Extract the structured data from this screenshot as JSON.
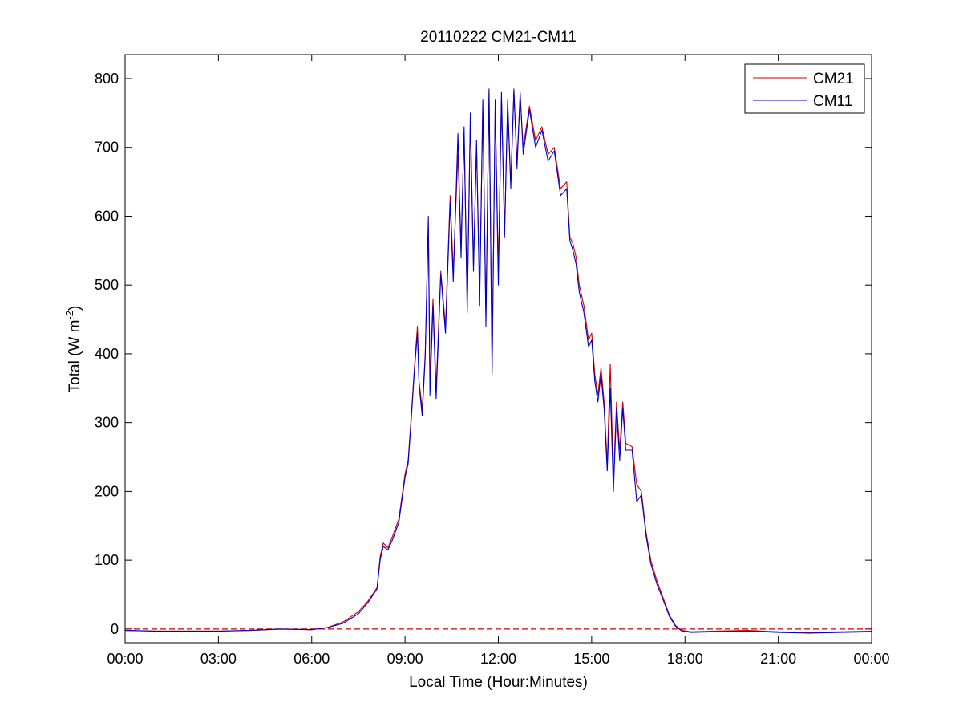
{
  "chart_data": {
    "type": "line",
    "title": "20110222 CM21-CM11",
    "xlabel": "Local Time (Hour:Minutes)",
    "ylabel": "Total (W m",
    "ylabel_exponent": "-2",
    "ylabel_close": ")",
    "xlim": [
      0,
      24
    ],
    "ylim": [
      -20,
      835
    ],
    "x_unit": "hours",
    "x_ticks": [
      {
        "value": 0,
        "label": "00:00"
      },
      {
        "value": 3,
        "label": "03:00"
      },
      {
        "value": 6,
        "label": "06:00"
      },
      {
        "value": 9,
        "label": "09:00"
      },
      {
        "value": 12,
        "label": "12:00"
      },
      {
        "value": 15,
        "label": "15:00"
      },
      {
        "value": 18,
        "label": "18:00"
      },
      {
        "value": 21,
        "label": "21:00"
      },
      {
        "value": 24,
        "label": "00:00"
      }
    ],
    "y_ticks": [
      {
        "value": 0,
        "label": "0"
      },
      {
        "value": 100,
        "label": "100"
      },
      {
        "value": 200,
        "label": "200"
      },
      {
        "value": 300,
        "label": "300"
      },
      {
        "value": 400,
        "label": "400"
      },
      {
        "value": 500,
        "label": "500"
      },
      {
        "value": 600,
        "label": "600"
      },
      {
        "value": 700,
        "label": "700"
      },
      {
        "value": 800,
        "label": "800"
      }
    ],
    "grid": false,
    "legend_position": "top-right",
    "reference_line": {
      "y": 0,
      "color": "#cc0000",
      "style": "dashed"
    },
    "series": [
      {
        "name": "CM21",
        "color": "#cc0000",
        "points": [
          [
            0.0,
            -2
          ],
          [
            1.0,
            -3
          ],
          [
            2.0,
            -3
          ],
          [
            3.0,
            -3
          ],
          [
            4.0,
            -2
          ],
          [
            5.0,
            0
          ],
          [
            6.0,
            -1
          ],
          [
            6.5,
            2
          ],
          [
            7.0,
            10
          ],
          [
            7.5,
            25
          ],
          [
            7.8,
            40
          ],
          [
            8.1,
            60
          ],
          [
            8.2,
            105
          ],
          [
            8.3,
            125
          ],
          [
            8.45,
            118
          ],
          [
            8.6,
            135
          ],
          [
            8.8,
            160
          ],
          [
            9.0,
            225
          ],
          [
            9.1,
            245
          ],
          [
            9.2,
            310
          ],
          [
            9.3,
            380
          ],
          [
            9.4,
            440
          ],
          [
            9.45,
            360
          ],
          [
            9.55,
            320
          ],
          [
            9.65,
            400
          ],
          [
            9.75,
            585
          ],
          [
            9.8,
            360
          ],
          [
            9.9,
            480
          ],
          [
            10.0,
            350
          ],
          [
            10.15,
            520
          ],
          [
            10.3,
            440
          ],
          [
            10.45,
            630
          ],
          [
            10.55,
            520
          ],
          [
            10.7,
            690
          ],
          [
            10.8,
            560
          ],
          [
            10.9,
            720
          ],
          [
            11.0,
            470
          ],
          [
            11.1,
            740
          ],
          [
            11.2,
            530
          ],
          [
            11.3,
            700
          ],
          [
            11.4,
            490
          ],
          [
            11.5,
            760
          ],
          [
            11.6,
            460
          ],
          [
            11.7,
            780
          ],
          [
            11.8,
            380
          ],
          [
            11.9,
            760
          ],
          [
            12.0,
            520
          ],
          [
            12.1,
            770
          ],
          [
            12.2,
            580
          ],
          [
            12.3,
            760
          ],
          [
            12.4,
            650
          ],
          [
            12.5,
            780
          ],
          [
            12.6,
            680
          ],
          [
            12.7,
            775
          ],
          [
            12.8,
            700
          ],
          [
            13.0,
            760
          ],
          [
            13.2,
            710
          ],
          [
            13.4,
            730
          ],
          [
            13.6,
            690
          ],
          [
            13.8,
            700
          ],
          [
            14.0,
            640
          ],
          [
            14.2,
            650
          ],
          [
            14.3,
            570
          ],
          [
            14.4,
            560
          ],
          [
            14.5,
            540
          ],
          [
            14.6,
            500
          ],
          [
            14.75,
            470
          ],
          [
            14.9,
            420
          ],
          [
            15.0,
            430
          ],
          [
            15.1,
            370
          ],
          [
            15.2,
            340
          ],
          [
            15.3,
            380
          ],
          [
            15.4,
            330
          ],
          [
            15.5,
            240
          ],
          [
            15.6,
            385
          ],
          [
            15.7,
            215
          ],
          [
            15.8,
            330
          ],
          [
            15.9,
            260
          ],
          [
            16.0,
            330
          ],
          [
            16.1,
            270
          ],
          [
            16.3,
            265
          ],
          [
            16.45,
            210
          ],
          [
            16.6,
            200
          ],
          [
            16.75,
            140
          ],
          [
            16.9,
            100
          ],
          [
            17.1,
            70
          ],
          [
            17.3,
            45
          ],
          [
            17.5,
            20
          ],
          [
            17.7,
            5
          ],
          [
            17.9,
            -2
          ],
          [
            18.2,
            -4
          ],
          [
            19.0,
            -3
          ],
          [
            20.0,
            -2
          ],
          [
            21.0,
            -4
          ],
          [
            22.0,
            -5
          ],
          [
            23.0,
            -4
          ],
          [
            24.0,
            -3
          ]
        ]
      },
      {
        "name": "CM11",
        "color": "#0000cc",
        "points": [
          [
            0.0,
            -2
          ],
          [
            1.0,
            -3
          ],
          [
            2.0,
            -3
          ],
          [
            3.0,
            -3
          ],
          [
            4.0,
            -2
          ],
          [
            5.0,
            0
          ],
          [
            6.0,
            -1
          ],
          [
            6.5,
            2
          ],
          [
            7.0,
            8
          ],
          [
            7.5,
            22
          ],
          [
            7.8,
            38
          ],
          [
            8.1,
            58
          ],
          [
            8.2,
            100
          ],
          [
            8.3,
            120
          ],
          [
            8.45,
            115
          ],
          [
            8.6,
            130
          ],
          [
            8.8,
            155
          ],
          [
            9.0,
            220
          ],
          [
            9.1,
            240
          ],
          [
            9.2,
            305
          ],
          [
            9.3,
            375
          ],
          [
            9.4,
            430
          ],
          [
            9.45,
            355
          ],
          [
            9.55,
            310
          ],
          [
            9.65,
            395
          ],
          [
            9.75,
            600
          ],
          [
            9.8,
            340
          ],
          [
            9.9,
            470
          ],
          [
            10.0,
            335
          ],
          [
            10.15,
            515
          ],
          [
            10.3,
            430
          ],
          [
            10.45,
            620
          ],
          [
            10.55,
            505
          ],
          [
            10.7,
            720
          ],
          [
            10.8,
            540
          ],
          [
            10.9,
            730
          ],
          [
            11.0,
            460
          ],
          [
            11.1,
            750
          ],
          [
            11.2,
            520
          ],
          [
            11.3,
            710
          ],
          [
            11.4,
            470
          ],
          [
            11.5,
            770
          ],
          [
            11.6,
            440
          ],
          [
            11.7,
            785
          ],
          [
            11.8,
            370
          ],
          [
            11.9,
            770
          ],
          [
            12.0,
            500
          ],
          [
            12.1,
            780
          ],
          [
            12.2,
            570
          ],
          [
            12.3,
            770
          ],
          [
            12.4,
            640
          ],
          [
            12.5,
            785
          ],
          [
            12.6,
            670
          ],
          [
            12.7,
            780
          ],
          [
            12.8,
            690
          ],
          [
            13.0,
            755
          ],
          [
            13.2,
            700
          ],
          [
            13.4,
            725
          ],
          [
            13.6,
            680
          ],
          [
            13.8,
            695
          ],
          [
            14.0,
            630
          ],
          [
            14.2,
            640
          ],
          [
            14.3,
            565
          ],
          [
            14.4,
            550
          ],
          [
            14.5,
            530
          ],
          [
            14.6,
            490
          ],
          [
            14.75,
            460
          ],
          [
            14.9,
            410
          ],
          [
            15.0,
            420
          ],
          [
            15.1,
            360
          ],
          [
            15.2,
            330
          ],
          [
            15.3,
            370
          ],
          [
            15.4,
            320
          ],
          [
            15.5,
            230
          ],
          [
            15.6,
            350
          ],
          [
            15.7,
            200
          ],
          [
            15.8,
            320
          ],
          [
            15.9,
            245
          ],
          [
            16.0,
            320
          ],
          [
            16.1,
            260
          ],
          [
            16.3,
            260
          ],
          [
            16.45,
            185
          ],
          [
            16.6,
            195
          ],
          [
            16.75,
            135
          ],
          [
            16.9,
            95
          ],
          [
            17.1,
            65
          ],
          [
            17.3,
            42
          ],
          [
            17.5,
            18
          ],
          [
            17.7,
            4
          ],
          [
            17.9,
            -3
          ],
          [
            18.2,
            -5
          ],
          [
            19.0,
            -4
          ],
          [
            20.0,
            -3
          ],
          [
            21.0,
            -5
          ],
          [
            22.0,
            -6
          ],
          [
            23.0,
            -5
          ],
          [
            24.0,
            -4
          ]
        ]
      }
    ]
  }
}
